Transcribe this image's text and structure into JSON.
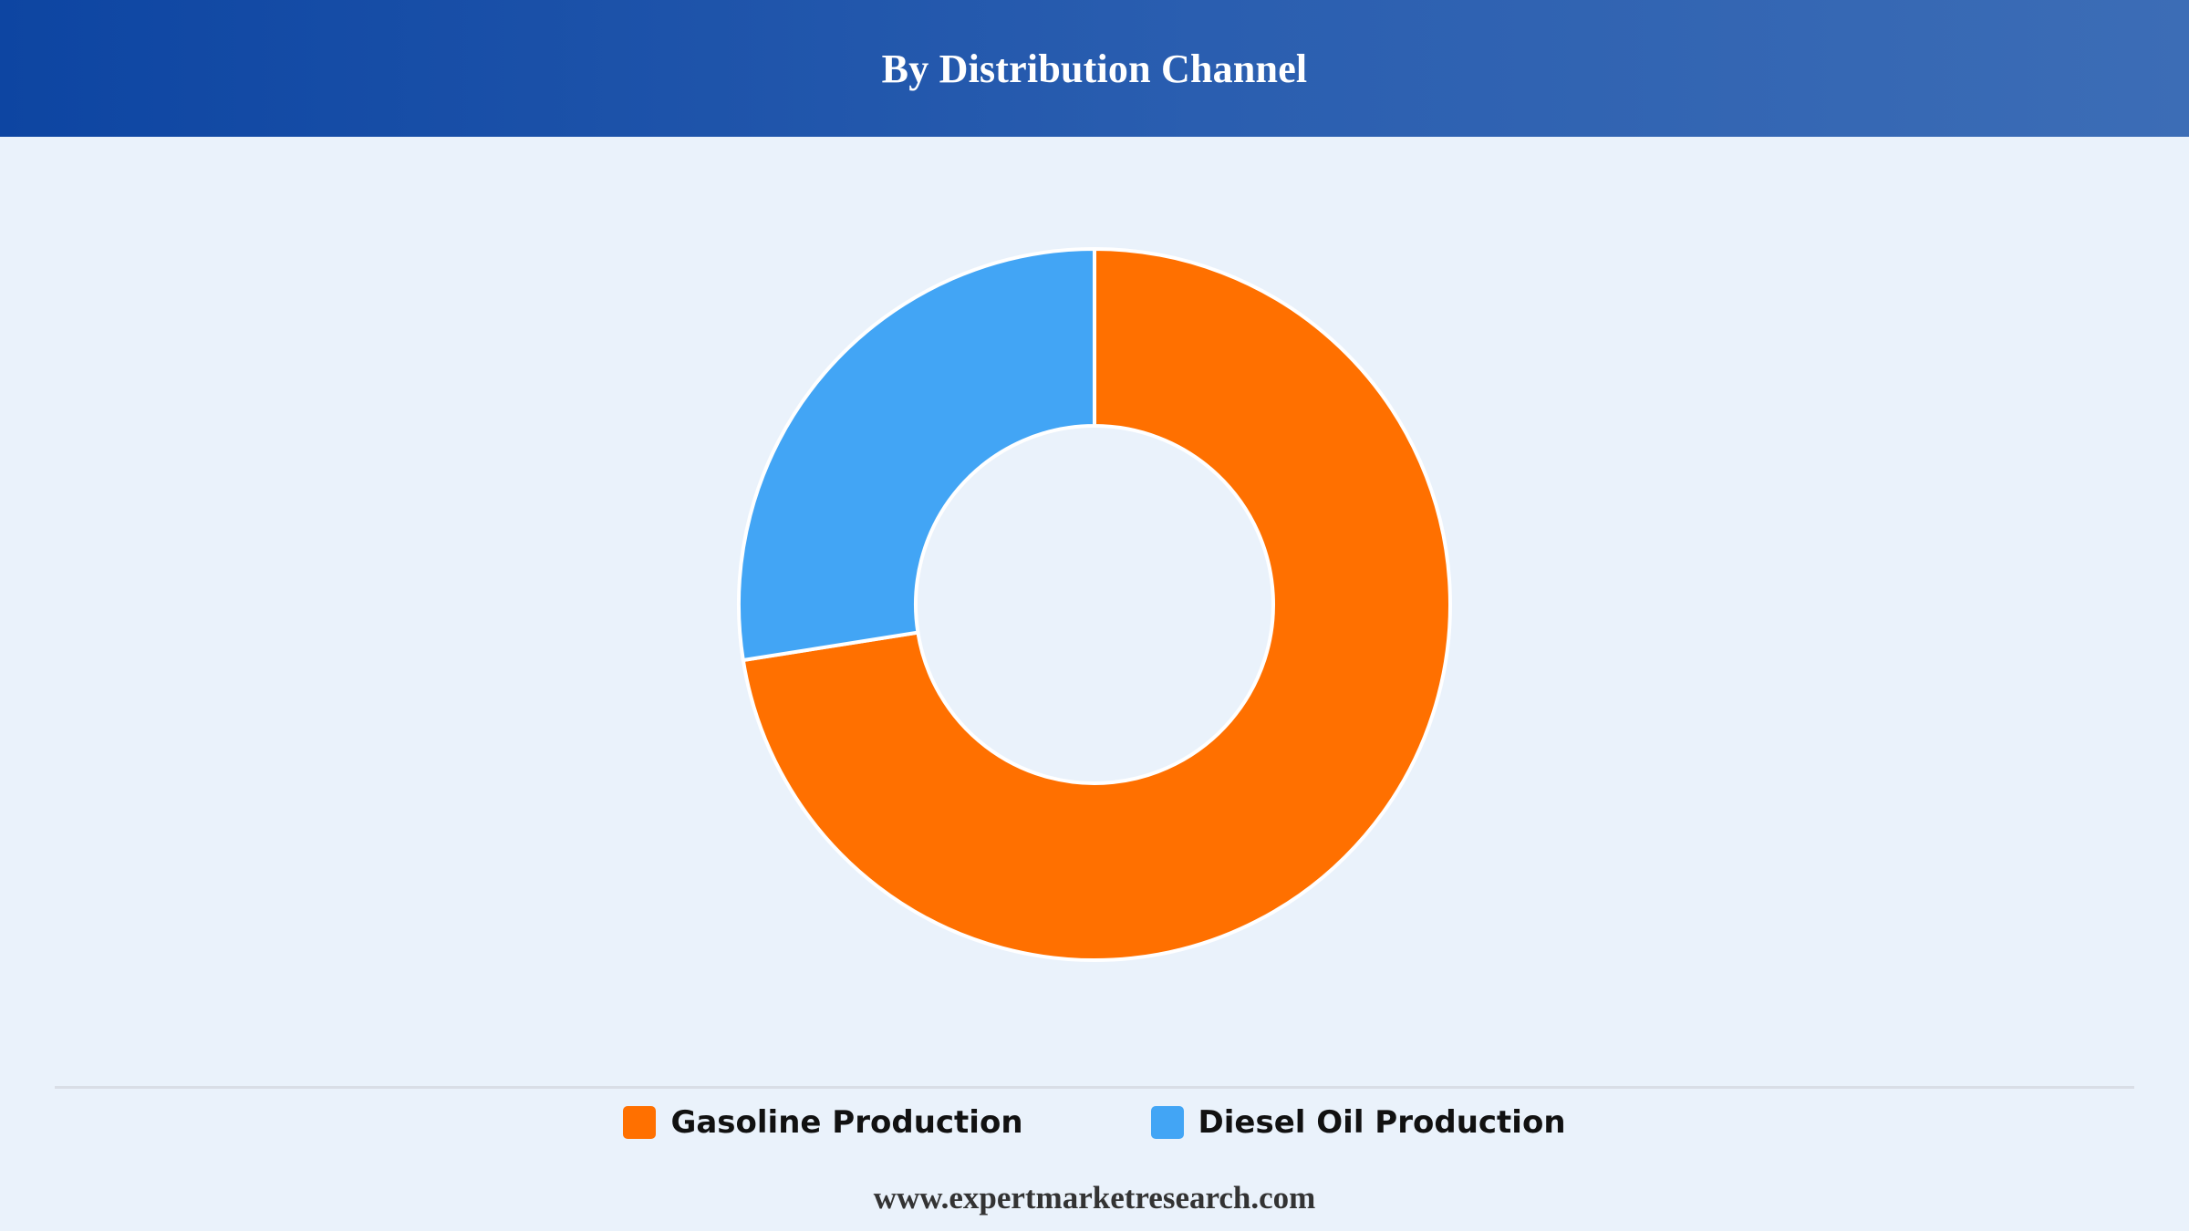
{
  "header": {
    "title": "By Distribution Channel"
  },
  "chart_data": {
    "type": "pie",
    "variant": "donut",
    "title": "By Distribution Channel",
    "categories": [
      "Gasoline Production",
      "Diesel Oil Production"
    ],
    "values": [
      72.5,
      27.5
    ],
    "unit": "%",
    "colors": [
      "#FF7000",
      "#42A5F5"
    ],
    "start": "12 o'clock",
    "direction": "clockwise",
    "legend": "bottom-center",
    "data_labels": false
  },
  "legend": {
    "items": [
      {
        "label": "Gasoline Production",
        "color": "#FF7000"
      },
      {
        "label": "Diesel Oil Production",
        "color": "#42A5F5"
      }
    ]
  },
  "footer": {
    "source": "www.expertmarketresearch.com"
  }
}
